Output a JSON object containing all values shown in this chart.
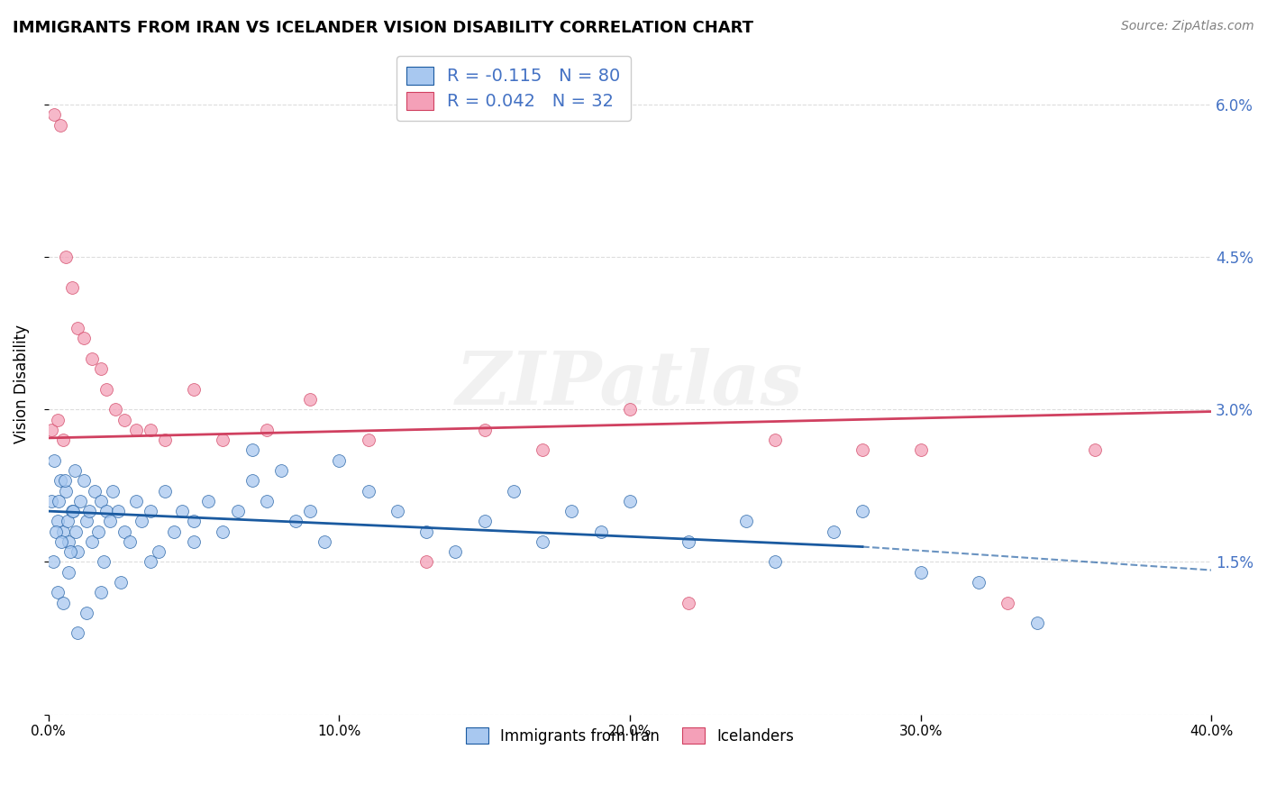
{
  "title": "IMMIGRANTS FROM IRAN VS ICELANDER VISION DISABILITY CORRELATION CHART",
  "source": "Source: ZipAtlas.com",
  "ylabel": "Vision Disability",
  "xlim": [
    0.0,
    40.0
  ],
  "ylim": [
    0.0,
    6.5
  ],
  "yticks": [
    0.0,
    1.5,
    3.0,
    4.5,
    6.0
  ],
  "ytick_labels": [
    "",
    "1.5%",
    "3.0%",
    "4.5%",
    "6.0%"
  ],
  "xtick_positions": [
    0.0,
    10.0,
    20.0,
    30.0,
    40.0
  ],
  "xtick_labels": [
    "0.0%",
    "10.0%",
    "20.0%",
    "30.0%",
    "40.0%"
  ],
  "blue_R": "-0.115",
  "blue_N": "80",
  "pink_R": "0.042",
  "pink_N": "32",
  "blue_color": "#A8C8F0",
  "pink_color": "#F4A0B8",
  "blue_line_color": "#1A5AA0",
  "pink_line_color": "#D04060",
  "legend_label_blue": "Immigrants from Iran",
  "legend_label_pink": "Icelanders",
  "blue_scatter_x": [
    0.1,
    0.2,
    0.3,
    0.4,
    0.5,
    0.6,
    0.7,
    0.8,
    0.9,
    1.0,
    0.15,
    0.25,
    0.35,
    0.45,
    0.55,
    0.65,
    0.75,
    0.85,
    0.95,
    1.1,
    1.2,
    1.3,
    1.4,
    1.5,
    1.6,
    1.7,
    1.8,
    1.9,
    2.0,
    2.1,
    2.2,
    2.4,
    2.6,
    2.8,
    3.0,
    3.2,
    3.5,
    3.8,
    4.0,
    4.3,
    4.6,
    5.0,
    5.5,
    6.0,
    6.5,
    7.0,
    7.5,
    8.0,
    8.5,
    9.0,
    9.5,
    10.0,
    11.0,
    12.0,
    13.0,
    14.0,
    15.0,
    16.0,
    17.0,
    18.0,
    19.0,
    20.0,
    22.0,
    24.0,
    25.0,
    27.0,
    28.0,
    30.0,
    32.0,
    34.0,
    0.3,
    0.5,
    0.7,
    1.0,
    1.3,
    1.8,
    2.5,
    3.5,
    5.0,
    7.0
  ],
  "blue_scatter_y": [
    2.1,
    2.5,
    1.9,
    2.3,
    1.8,
    2.2,
    1.7,
    2.0,
    2.4,
    1.6,
    1.5,
    1.8,
    2.1,
    1.7,
    2.3,
    1.9,
    1.6,
    2.0,
    1.8,
    2.1,
    2.3,
    1.9,
    2.0,
    1.7,
    2.2,
    1.8,
    2.1,
    1.5,
    2.0,
    1.9,
    2.2,
    2.0,
    1.8,
    1.7,
    2.1,
    1.9,
    2.0,
    1.6,
    2.2,
    1.8,
    2.0,
    1.9,
    2.1,
    1.8,
    2.0,
    2.3,
    2.1,
    2.4,
    1.9,
    2.0,
    1.7,
    2.5,
    2.2,
    2.0,
    1.8,
    1.6,
    1.9,
    2.2,
    1.7,
    2.0,
    1.8,
    2.1,
    1.7,
    1.9,
    1.5,
    1.8,
    2.0,
    1.4,
    1.3,
    0.9,
    1.2,
    1.1,
    1.4,
    0.8,
    1.0,
    1.2,
    1.3,
    1.5,
    1.7,
    2.6
  ],
  "pink_scatter_x": [
    0.1,
    0.2,
    0.4,
    0.6,
    0.8,
    1.0,
    1.2,
    1.5,
    1.8,
    2.0,
    2.3,
    2.6,
    3.0,
    3.5,
    4.0,
    5.0,
    6.0,
    7.5,
    9.0,
    11.0,
    13.0,
    15.0,
    17.0,
    20.0,
    22.0,
    25.0,
    28.0,
    30.0,
    33.0,
    36.0,
    0.3,
    0.5
  ],
  "pink_scatter_y": [
    2.8,
    5.9,
    5.8,
    4.5,
    4.2,
    3.8,
    3.7,
    3.5,
    3.4,
    3.2,
    3.0,
    2.9,
    2.8,
    2.8,
    2.7,
    3.2,
    2.7,
    2.8,
    3.1,
    2.7,
    1.5,
    2.8,
    2.6,
    3.0,
    1.1,
    2.7,
    2.6,
    2.6,
    1.1,
    2.6,
    2.9,
    2.7
  ],
  "blue_trendline_start_x": 0.0,
  "blue_trendline_start_y": 2.0,
  "blue_trendline_solid_end_x": 28.0,
  "blue_trendline_solid_end_y": 1.65,
  "blue_trendline_dashed_end_x": 40.0,
  "blue_trendline_dashed_end_y": 1.42,
  "pink_trendline_start_x": 0.0,
  "pink_trendline_start_y": 2.72,
  "pink_trendline_end_x": 40.0,
  "pink_trendline_end_y": 2.98,
  "watermark_text": "ZIPatlas",
  "grid_color": "#DDDDDD",
  "background_color": "#FFFFFF",
  "axis_label_color": "#4472C4",
  "right_axis_color": "#4472C4"
}
